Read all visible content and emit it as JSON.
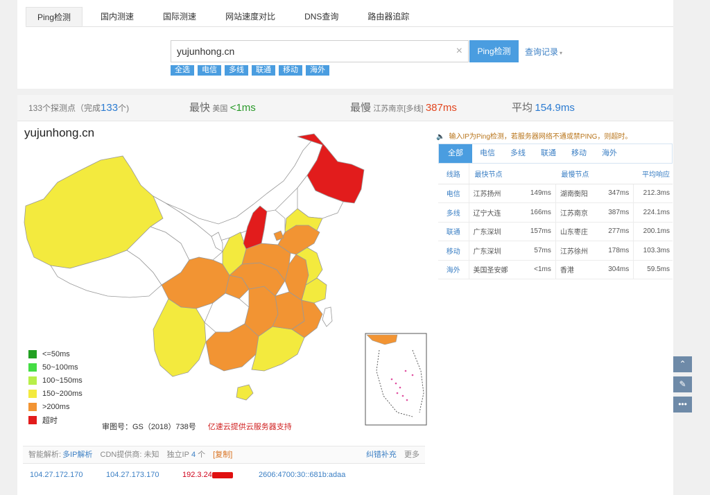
{
  "tabs": [
    "Ping检测",
    "国内测速",
    "国际测速",
    "网站速度对比",
    "DNS查询",
    "路由器追踪"
  ],
  "search": {
    "value": "yujunhong.cn",
    "clear": "×",
    "button": "Ping检测",
    "history": "查询记录",
    "history_caret": "▾"
  },
  "chips": [
    "全选",
    "电信",
    "多线",
    "联通",
    "移动",
    "海外"
  ],
  "stats": {
    "probes_label": "133个探测点（完成",
    "probes_value": "133",
    "probes_suffix": "个)",
    "fastest_label": "最快",
    "fastest_loc": "美国",
    "fastest_value": "<1ms",
    "slowest_label": "最慢",
    "slowest_loc": "江苏南京[多线]",
    "slowest_value": "387ms",
    "avg_label": "平均",
    "avg_value": "154.9ms"
  },
  "map": {
    "title": "yujunhong.cn",
    "legend": [
      {
        "label": "<=50ms",
        "color": "#22a022"
      },
      {
        "label": "50~100ms",
        "color": "#44dd44"
      },
      {
        "label": "100~150ms",
        "color": "#b8ef4a"
      },
      {
        "label": "150~200ms",
        "color": "#f3ea3e"
      },
      {
        "label": ">200ms",
        "color": "#f29433"
      },
      {
        "label": "超时",
        "color": "#e21c1c"
      }
    ],
    "approval": "审图号：GS（2018）738号",
    "sponsor": "亿速云提供云服务器支持"
  },
  "notice": {
    "icon": "🔈",
    "text": "输入IP为Ping检测，若服务器网络不通或禁PING，则超时。"
  },
  "right_tabs": [
    "全部",
    "电信",
    "多线",
    "联通",
    "移动",
    "海外"
  ],
  "table": {
    "headers": [
      "线路",
      "最快节点",
      "最慢节点",
      "平均响应"
    ],
    "rows": [
      {
        "line": "电信",
        "fast": "江苏扬州",
        "fast_ms": "149ms",
        "slow": "湖南衡阳",
        "slow_ms": "347ms",
        "avg": "212.3ms"
      },
      {
        "line": "多线",
        "fast": "辽宁大连",
        "fast_ms": "166ms",
        "slow": "江苏南京",
        "slow_ms": "387ms",
        "avg": "224.1ms"
      },
      {
        "line": "联通",
        "fast": "广东深圳",
        "fast_ms": "157ms",
        "slow": "山东枣庄",
        "slow_ms": "277ms",
        "avg": "200.1ms"
      },
      {
        "line": "移动",
        "fast": "广东深圳",
        "fast_ms": "57ms",
        "slow": "江苏徐州",
        "slow_ms": "178ms",
        "avg": "103.3ms"
      },
      {
        "line": "海外",
        "fast": "美国圣安娜",
        "fast_ms": "<1ms",
        "slow": "香港",
        "slow_ms": "304ms",
        "avg": "59.5ms"
      }
    ]
  },
  "bottom": {
    "smart": "智能解析:",
    "multi_ip": "多IP解析",
    "cdn": "CDN提供商: 未知",
    "ip_label": "独立IP",
    "ip_count": "4",
    "ip_unit": "个",
    "copy": "[复制]",
    "fix": "纠错补充",
    "more": "更多"
  },
  "ips": [
    "104.27.172.170",
    "104.27.173.170",
    "192.3.24",
    "2606:4700:30::681b:adaa"
  ],
  "side": {
    "up": "⌃",
    "feedback": "✎",
    "more": "•••"
  }
}
